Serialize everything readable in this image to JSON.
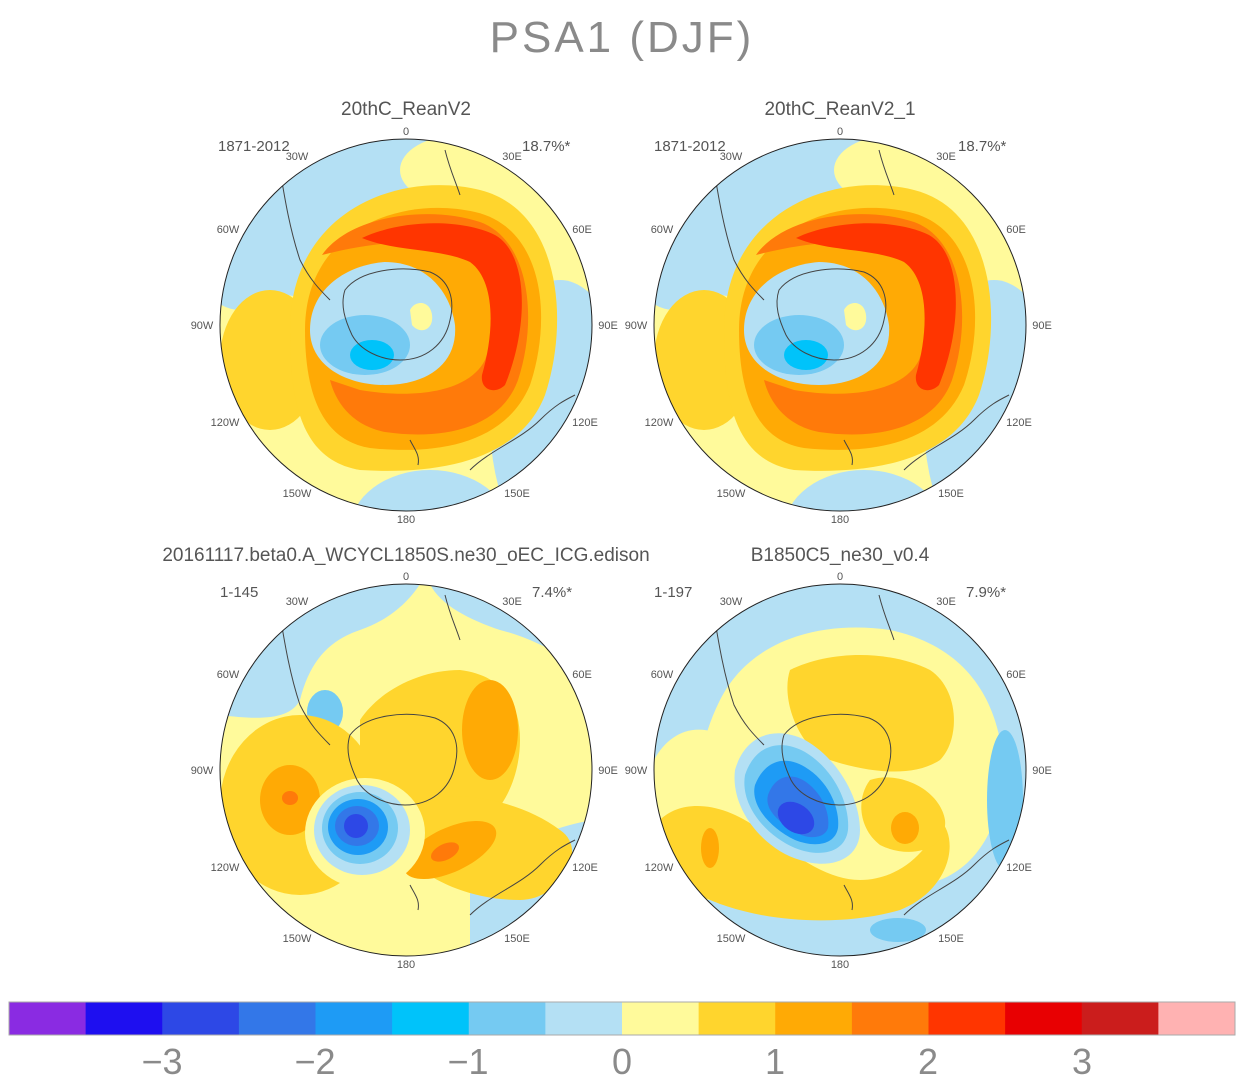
{
  "title": "PSA1 (DJF)",
  "panels": [
    {
      "name": "20thC_ReanV2",
      "years": "1871-2012",
      "variance": "18.7%*"
    },
    {
      "name": "20thC_ReanV2_1",
      "years": "1871-2012",
      "variance": "18.7%*"
    },
    {
      "name": "20161117.beta0.A_WCYCL1850S.ne30_oEC_ICG.edison",
      "years": "1-145",
      "variance": "7.4%*"
    },
    {
      "name": "B1850C5_ne30_v0.4",
      "years": "1-197",
      "variance": "7.9%*"
    }
  ],
  "longitude_labels": [
    "0",
    "30E",
    "60E",
    "90E",
    "120E",
    "150E",
    "180",
    "150W",
    "120W",
    "90W",
    "60W",
    "30W"
  ],
  "colorbar": {
    "colors": [
      "#8a2be2",
      "#1e0ff0",
      "#2d48e6",
      "#3377e8",
      "#1e9bf5",
      "#00c3fa",
      "#75caf2",
      "#b4e0f4",
      "#fffa9b",
      "#ffd52d",
      "#ffaa05",
      "#ff7a0a",
      "#ff3500",
      "#e80002",
      "#cb1d1c",
      "#ffb2b2"
    ],
    "tick_labels": [
      "−3",
      "−2",
      "−1",
      "0",
      "1",
      "2",
      "3"
    ]
  },
  "palette": {
    "deep_blue": "#2d48e6",
    "blue": "#3377e8",
    "cyan": "#00c3fa",
    "light_blue2": "#75caf2",
    "light_blue": "#b4e0f4",
    "pale_yellow": "#fffa9b",
    "yellow": "#ffd52d",
    "orange1": "#ffaa05",
    "orange2": "#ff7a0a",
    "red": "#ff3500"
  }
}
